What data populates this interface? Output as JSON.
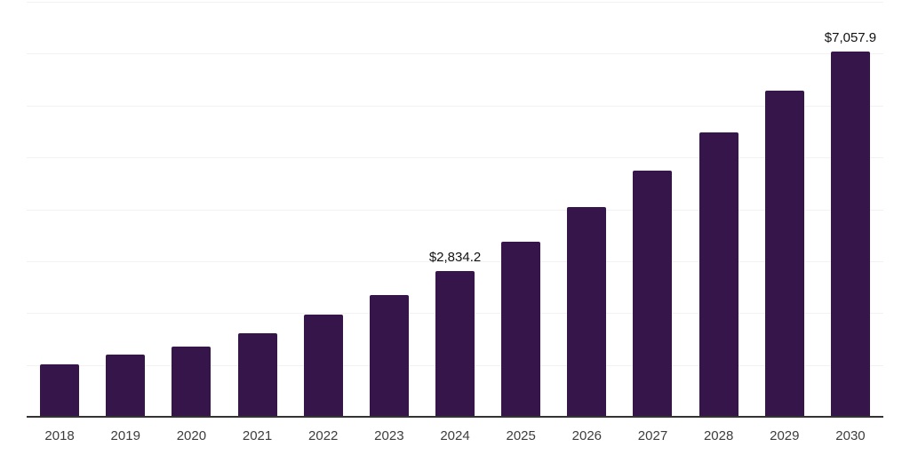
{
  "chart_data": {
    "type": "bar",
    "title": "",
    "xlabel": "",
    "ylabel": "",
    "categories": [
      "2018",
      "2019",
      "2020",
      "2021",
      "2022",
      "2023",
      "2024",
      "2025",
      "2026",
      "2027",
      "2028",
      "2029",
      "2030"
    ],
    "values": [
      1035,
      1210,
      1365,
      1625,
      1995,
      2365,
      2834.2,
      3395,
      4055,
      4760,
      5500,
      6300,
      7057.9
    ],
    "data_labels": [
      {
        "category": "2024",
        "text": "$2,834.2"
      },
      {
        "category": "2030",
        "text": "$7,057.9"
      }
    ],
    "ylim": [
      0,
      8000
    ],
    "gridline_interval": 1000,
    "y_axis_labels_visible": false,
    "legend": "none",
    "grid": "horizontal",
    "colors": {
      "bar": "#36154a",
      "gridline": "#f2f2f3",
      "axis_line": "#333333",
      "tick_text": "#3d3d3d",
      "data_label_text": "#111111",
      "background": "#ffffff"
    }
  }
}
